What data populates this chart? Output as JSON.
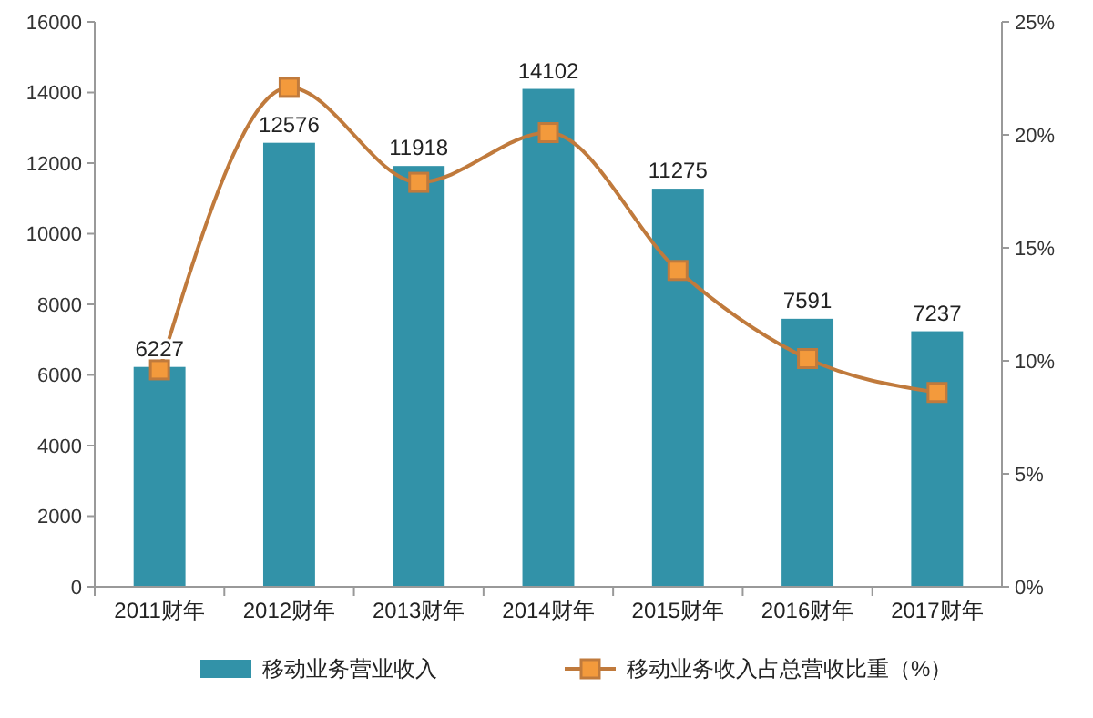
{
  "chart_data": {
    "type": "bar",
    "categories": [
      "2011财年",
      "2012财年",
      "2013财年",
      "2014财年",
      "2015财年",
      "2016财年",
      "2017财年"
    ],
    "series": [
      {
        "name": "移动业务营业收入",
        "color": "#3292a8",
        "values": [
          6227,
          12576,
          11918,
          14102,
          11275,
          7591,
          7237
        ],
        "value_labels": [
          "6227",
          "12576",
          "11918",
          "14102",
          "11275",
          "7591",
          "7237"
        ]
      },
      {
        "name": "移动业务收入占总营收比重（%）",
        "type": "line",
        "axis": "y2",
        "color": "#c07a3c",
        "marker": "square",
        "values": [
          9.6,
          22.1,
          17.9,
          20.1,
          14.0,
          10.1,
          8.6
        ]
      }
    ],
    "ylim": [
      0,
      16000
    ],
    "yticks": [
      0,
      2000,
      4000,
      6000,
      8000,
      10000,
      12000,
      14000,
      16000
    ],
    "y2lim": [
      0,
      25
    ],
    "y2ticks": [
      {
        "value": 0,
        "label": "0%"
      },
      {
        "value": 5,
        "label": "5%"
      },
      {
        "value": 10,
        "label": "10%"
      },
      {
        "value": 15,
        "label": "15%"
      },
      {
        "value": 20,
        "label": "20%"
      },
      {
        "value": 25,
        "label": "25%"
      }
    ],
    "legend": "bottom"
  }
}
